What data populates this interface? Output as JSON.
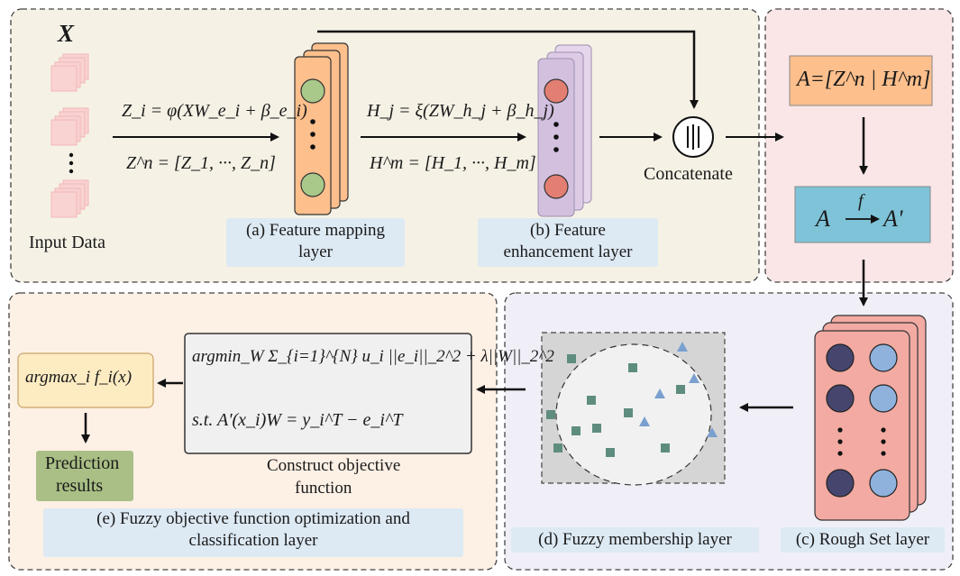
{
  "input": {
    "symbol": "X",
    "label": "Input Data"
  },
  "mapping": {
    "eq1": "Z_i = φ(XW_e_i + β_e_i)",
    "eq2": "Z^n = [Z_1, ···, Z_n]",
    "caption_line1": "(a) Feature mapping",
    "caption_line2": "layer"
  },
  "enhancement": {
    "eq1": "H_j = ξ(ZW_h_j + β_h_j)",
    "eq2": "H^m = [H_1, ···, H_m]",
    "caption_line1": "(b) Feature",
    "caption_line2": "enhancement layer"
  },
  "concat": {
    "label": "Concatenate"
  },
  "right_panel": {
    "formula": "A=[Z^n | H^m]",
    "transform_from": "A",
    "transform_fn": "f",
    "transform_to": "A'"
  },
  "rough_set": {
    "caption": "(c) Rough Set layer"
  },
  "fuzzy": {
    "caption": "(d) Fuzzy membership layer"
  },
  "objective": {
    "line1": "argmin_W Σ_{i=1}^{N} u_i ||e_i||_2^2 + λ||W||_2^2",
    "line2": "s.t.  A'(x_i)W = y_i^T − e_i^T",
    "caption_line1": "Construct objective",
    "caption_line2": "function"
  },
  "argmax": {
    "text": "argmax_i f_i(x)"
  },
  "prediction": {
    "line1": "Prediction",
    "line2": "results"
  },
  "classification": {
    "caption_line1": "(e) Fuzzy objective function optimization and",
    "caption_line2": "classification layer"
  },
  "colors": {
    "top_panel": "#f5f1e5",
    "right_panel": "#fae6e7",
    "bottom_right_panel": "#f0eff7",
    "bottom_left_panel": "#fdf0e5",
    "orange_box": "#fdbf8c",
    "teal_box": "#7ec3d7",
    "green_node": "#a9c98a",
    "red_node": "#e37e73",
    "purple_layer": "#d9c6e3",
    "rough_layer": "#f2aaa2",
    "dark_node": "#46456d",
    "blue_node": "#8fb2dd",
    "square_marker": "#5e8d80",
    "triangle_marker": "#7aa0cf",
    "prediction_box": "#a9bf85",
    "caption_bg": "#dde9f3"
  }
}
